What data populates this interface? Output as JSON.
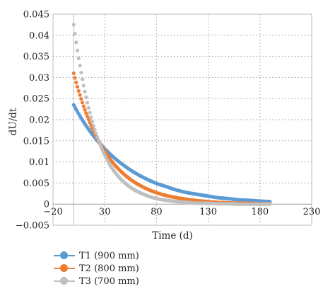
{
  "chart_data": {
    "type": "scatter",
    "title": "",
    "xlabel": "Time (d)",
    "ylabel": "dU/dt",
    "xlim": [
      -20,
      230
    ],
    "ylim": [
      -0.005,
      0.045
    ],
    "x_ticks": [
      -20,
      30,
      80,
      130,
      180,
      230
    ],
    "x_tick_labels": [
      "−20",
      "30",
      "80",
      "130",
      "180",
      "230"
    ],
    "y_ticks": [
      -0.005,
      0,
      0.005,
      0.01,
      0.015,
      0.02,
      0.025,
      0.03,
      0.035,
      0.04,
      0.045
    ],
    "y_tick_labels": [
      "−0.005",
      "0",
      "0.005",
      "0.01",
      "0.015",
      "0.02",
      "0.025",
      "0.03",
      "0.035",
      "0.04",
      "0.045"
    ],
    "grid": true,
    "grid_style": "dotted",
    "legend_position": "bottom-left",
    "series": [
      {
        "name": "T1 (900 mm)",
        "color": "#5b9bd5",
        "x": [
          0,
          10,
          20,
          30,
          40,
          50,
          60,
          70,
          80,
          90,
          100,
          110,
          120,
          130,
          140,
          150,
          160,
          170,
          180,
          190
        ],
        "y": [
          0.0235,
          0.0193,
          0.0159,
          0.0131,
          0.0108,
          0.0089,
          0.0073,
          0.006,
          0.0049,
          0.0041,
          0.0033,
          0.0027,
          0.0023,
          0.0019,
          0.0015,
          0.0013,
          0.001,
          0.0009,
          0.0007,
          0.0006
        ]
      },
      {
        "name": "T2 (800 mm)",
        "color": "#ed7d31",
        "x": [
          0,
          10,
          20,
          30,
          40,
          50,
          60,
          70,
          80,
          90,
          100,
          110,
          120,
          130,
          140,
          150,
          160,
          170,
          180,
          190
        ],
        "y": [
          0.031,
          0.0229,
          0.0169,
          0.0125,
          0.0092,
          0.0068,
          0.005,
          0.0037,
          0.0027,
          0.002,
          0.0015,
          0.0011,
          0.0008,
          0.0006,
          0.0004,
          0.0003,
          0.0002,
          0.0002,
          0.0001,
          0.0001
        ]
      },
      {
        "name": "T3 (700 mm)",
        "color": "#bfbfbf",
        "x": [
          0,
          10,
          20,
          30,
          40,
          50,
          60,
          70,
          80,
          90,
          100,
          110,
          120,
          130,
          140,
          150,
          160,
          170,
          180,
          190
        ],
        "y": [
          0.0425,
          0.0276,
          0.0179,
          0.0116,
          0.0075,
          0.0049,
          0.0032,
          0.0021,
          0.0013,
          0.0009,
          0.0006,
          0.0004,
          0.0002,
          0.0002,
          0.0001,
          0.0001,
          0.0,
          0.0,
          0.0,
          0.0
        ]
      }
    ]
  }
}
